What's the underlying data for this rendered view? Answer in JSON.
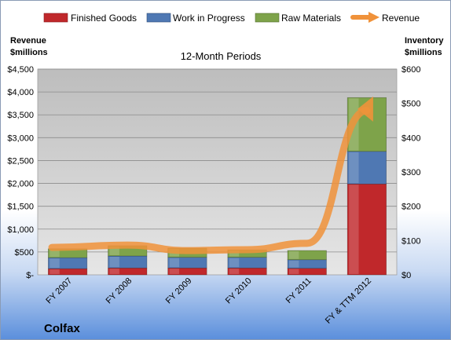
{
  "colors": {
    "finished_goods": "#c0282b",
    "work_in_progress": "#4f78b3",
    "raw_materials": "#7ea34a",
    "revenue": "#f0923a"
  },
  "chart_data": {
    "type": "bar",
    "stacked": true,
    "subtitle": "12-Month Periods",
    "company": "Colfax",
    "categories": [
      "FY 2007",
      "FY 2008",
      "FY 2009",
      "FY 2010",
      "FY 2011",
      "FY & TTM 2012"
    ],
    "series": [
      {
        "name": "Finished Goods",
        "axis": "right",
        "values": [
          18,
          20,
          20,
          20,
          19,
          265
        ]
      },
      {
        "name": "Work in Progress",
        "axis": "right",
        "values": [
          32,
          35,
          31,
          31,
          25,
          95
        ]
      },
      {
        "name": "Raw Materials",
        "axis": "right",
        "values": [
          26,
          30,
          27,
          22,
          27,
          157
        ]
      },
      {
        "name": "Revenue",
        "axis": "left",
        "type": "line",
        "values": [
          600,
          650,
          530,
          550,
          690,
          3900
        ]
      }
    ],
    "left_axis": {
      "title_line1": "Revenue",
      "title_line2": "$millions",
      "range": [
        0,
        4500
      ],
      "tick_labels": [
        "$-",
        "$500",
        "$1,000",
        "$1,500",
        "$2,000",
        "$2,500",
        "$3,000",
        "$3,500",
        "$4,000",
        "$4,500"
      ]
    },
    "right_axis": {
      "title_line1": "Inventory",
      "title_line2": "$millions",
      "range": [
        0,
        600
      ],
      "tick_labels": [
        "$0",
        "$100",
        "$200",
        "$300",
        "$400",
        "$500",
        "$600"
      ]
    },
    "grid": true,
    "legend_position": "top"
  }
}
